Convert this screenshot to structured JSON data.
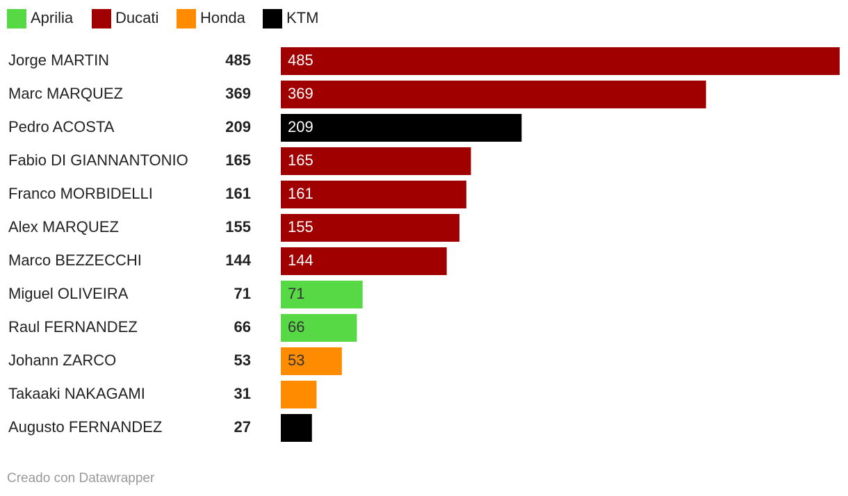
{
  "chart_data": {
    "type": "bar",
    "categories": [
      "Jorge MARTIN",
      "Marc MARQUEZ",
      "Pedro ACOSTA",
      "Fabio DI GIANNANTONIO",
      "Franco MORBIDELLI",
      "Alex MARQUEZ",
      "Marco BEZZECCHI",
      "Miguel OLIVEIRA",
      "Raul FERNANDEZ",
      "Johann ZARCO",
      "Takaaki NAKAGAMI",
      "Augusto FERNANDEZ"
    ],
    "series": [
      {
        "name": "Aprilia",
        "color": "#57d946",
        "values": [
          null,
          null,
          null,
          null,
          null,
          null,
          null,
          71,
          66,
          null,
          null,
          null
        ]
      },
      {
        "name": "Ducati",
        "color": "#a00000",
        "values": [
          485,
          369,
          null,
          165,
          161,
          155,
          144,
          null,
          null,
          null,
          null,
          null
        ]
      },
      {
        "name": "Honda",
        "color": "#ff8c00",
        "values": [
          null,
          null,
          null,
          null,
          null,
          null,
          null,
          null,
          null,
          53,
          31,
          null
        ]
      },
      {
        "name": "KTM",
        "color": "#000000",
        "values": [
          null,
          null,
          209,
          null,
          null,
          null,
          null,
          null,
          null,
          null,
          null,
          27
        ]
      }
    ],
    "xlim": [
      0,
      485
    ],
    "footer": "Creado con Datawrapper"
  }
}
